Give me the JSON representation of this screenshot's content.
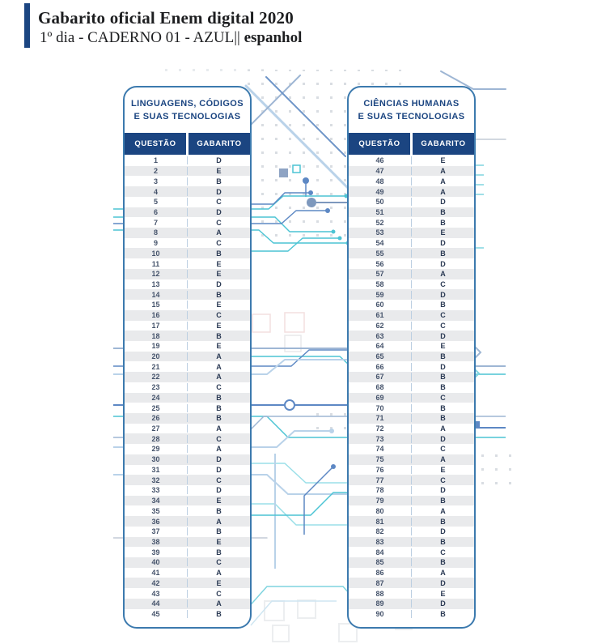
{
  "header": {
    "title": "Gabarito oficial Enem digital 2020",
    "subtitle_regular": "1º dia - CADERNO 01 - AZUL|| ",
    "subtitle_bold": "espanhol"
  },
  "colors": {
    "navy": "#1b4581",
    "accent_bar": "#1e4f8f",
    "card_border": "#3c7aae",
    "row_alt": "#e9eaec",
    "teal": "#4cc4d4",
    "light_blue": "#b9d2e9",
    "mid_blue": "#5d88c4"
  },
  "tables": [
    {
      "title_line1": "LINGUAGENS, CÓDIGOS",
      "title_line2": "E SUAS TECNOLOGIAS",
      "col_question": "QUESTÃO",
      "col_answer": "GABARITO",
      "rows": [
        [
          "1",
          "D"
        ],
        [
          "2",
          "E"
        ],
        [
          "3",
          "B"
        ],
        [
          "4",
          "D"
        ],
        [
          "5",
          "C"
        ],
        [
          "6",
          "D"
        ],
        [
          "7",
          "C"
        ],
        [
          "8",
          "A"
        ],
        [
          "9",
          "C"
        ],
        [
          "10",
          "B"
        ],
        [
          "11",
          "E"
        ],
        [
          "12",
          "E"
        ],
        [
          "13",
          "D"
        ],
        [
          "14",
          "B"
        ],
        [
          "15",
          "E"
        ],
        [
          "16",
          "C"
        ],
        [
          "17",
          "E"
        ],
        [
          "18",
          "B"
        ],
        [
          "19",
          "E"
        ],
        [
          "20",
          "A"
        ],
        [
          "21",
          "A"
        ],
        [
          "22",
          "A"
        ],
        [
          "23",
          "C"
        ],
        [
          "24",
          "B"
        ],
        [
          "25",
          "B"
        ],
        [
          "26",
          "B"
        ],
        [
          "27",
          "A"
        ],
        [
          "28",
          "C"
        ],
        [
          "29",
          "A"
        ],
        [
          "30",
          "D"
        ],
        [
          "31",
          "D"
        ],
        [
          "32",
          "C"
        ],
        [
          "33",
          "D"
        ],
        [
          "34",
          "E"
        ],
        [
          "35",
          "B"
        ],
        [
          "36",
          "A"
        ],
        [
          "37",
          "B"
        ],
        [
          "38",
          "E"
        ],
        [
          "39",
          "B"
        ],
        [
          "40",
          "C"
        ],
        [
          "41",
          "A"
        ],
        [
          "42",
          "E"
        ],
        [
          "43",
          "C"
        ],
        [
          "44",
          "A"
        ],
        [
          "45",
          "B"
        ]
      ]
    },
    {
      "title_line1": "CIÊNCIAS HUMANAS",
      "title_line2": "E SUAS TECNOLOGIAS",
      "col_question": "QUESTÃO",
      "col_answer": "GABARITO",
      "rows": [
        [
          "46",
          "E"
        ],
        [
          "47",
          "A"
        ],
        [
          "48",
          "A"
        ],
        [
          "49",
          "A"
        ],
        [
          "50",
          "D"
        ],
        [
          "51",
          "B"
        ],
        [
          "52",
          "B"
        ],
        [
          "53",
          "E"
        ],
        [
          "54",
          "D"
        ],
        [
          "55",
          "B"
        ],
        [
          "56",
          "D"
        ],
        [
          "57",
          "A"
        ],
        [
          "58",
          "C"
        ],
        [
          "59",
          "D"
        ],
        [
          "60",
          "B"
        ],
        [
          "61",
          "C"
        ],
        [
          "62",
          "C"
        ],
        [
          "63",
          "D"
        ],
        [
          "64",
          "E"
        ],
        [
          "65",
          "B"
        ],
        [
          "66",
          "D"
        ],
        [
          "67",
          "B"
        ],
        [
          "68",
          "B"
        ],
        [
          "69",
          "C"
        ],
        [
          "70",
          "B"
        ],
        [
          "71",
          "B"
        ],
        [
          "72",
          "A"
        ],
        [
          "73",
          "D"
        ],
        [
          "74",
          "C"
        ],
        [
          "75",
          "A"
        ],
        [
          "76",
          "E"
        ],
        [
          "77",
          "C"
        ],
        [
          "78",
          "D"
        ],
        [
          "79",
          "B"
        ],
        [
          "80",
          "A"
        ],
        [
          "81",
          "B"
        ],
        [
          "82",
          "D"
        ],
        [
          "83",
          "B"
        ],
        [
          "84",
          "C"
        ],
        [
          "85",
          "B"
        ],
        [
          "86",
          "A"
        ],
        [
          "87",
          "D"
        ],
        [
          "88",
          "E"
        ],
        [
          "89",
          "D"
        ],
        [
          "90",
          "B"
        ]
      ]
    }
  ]
}
